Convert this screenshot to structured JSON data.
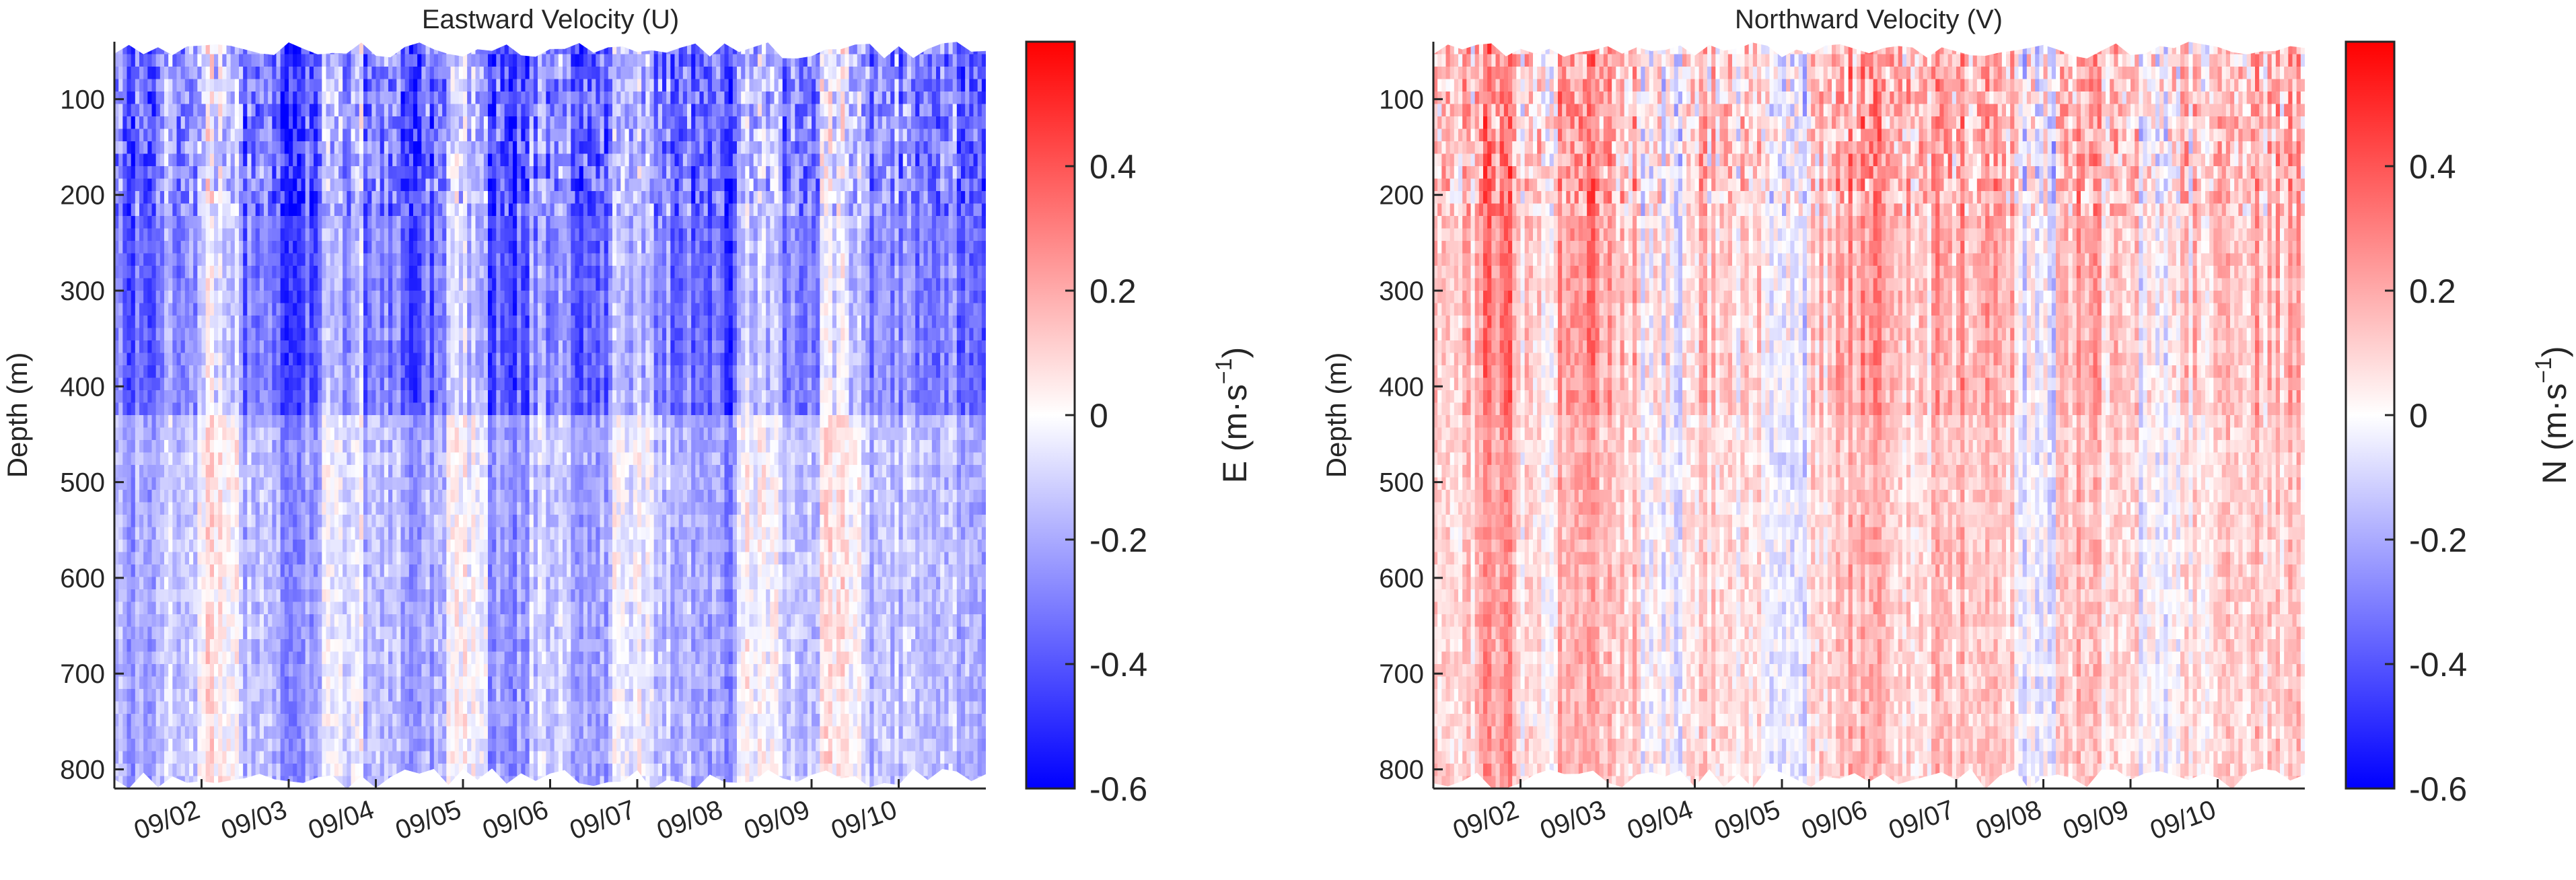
{
  "chart_data": [
    {
      "type": "heatmap",
      "title": "Eastward Velocity (U)",
      "ylabel": "Depth (m)",
      "ylim": [
        820,
        40
      ],
      "yticks": [
        100,
        200,
        300,
        400,
        500,
        600,
        700,
        800
      ],
      "ytick_labels": [
        "100",
        "200",
        "300",
        "400",
        "500",
        "600",
        "700",
        "800"
      ],
      "x_range_days": [
        0.0,
        10.0
      ],
      "xtick_days": [
        1,
        2,
        3,
        4,
        5,
        6,
        7,
        8,
        9
      ],
      "xtick_labels": [
        "09/02",
        "09/03",
        "09/04",
        "09/05",
        "09/06",
        "09/07",
        "09/08",
        "09/09",
        "09/10"
      ],
      "colorbar": {
        "label_prefix": "E",
        "label_units": "(m·s",
        "label_exp": "−1",
        "label_close": ")",
        "clim": [
          -0.6,
          0.6
        ],
        "ticks": [
          0.4,
          0.2,
          0,
          -0.2,
          -0.4,
          -0.6
        ],
        "tick_labels": [
          "0.4",
          "0.2",
          "0",
          "-0.2",
          "-0.4",
          "-0.6"
        ],
        "colors": {
          "low": "#0000ff",
          "mid": "#ffffff",
          "high": "#ff0000"
        }
      },
      "surface_depth_m": 45,
      "bottom_depth_m": 810,
      "shallow_break_depth_m": 220,
      "deep_start_depth_m": 430,
      "upper_bias": -0.22,
      "lower_bias": -0.08,
      "column_bias": [
        -0.15,
        -0.05,
        0.15,
        -0.1,
        -0.2,
        0.05,
        -0.1,
        -0.15,
        0.1,
        -0.2,
        -0.05,
        -0.15,
        0.05,
        -0.1,
        -0.2,
        0.1,
        -0.05,
        0.15,
        -0.1,
        -0.05,
        -0.1
      ]
    },
    {
      "type": "heatmap",
      "title": "Northward Velocity (V)",
      "ylabel": "Depth (m)",
      "ylim": [
        820,
        40
      ],
      "yticks": [
        100,
        200,
        300,
        400,
        500,
        600,
        700,
        800
      ],
      "ytick_labels": [
        "100",
        "200",
        "300",
        "400",
        "500",
        "600",
        "700",
        "800"
      ],
      "x_range_days": [
        0.0,
        10.0
      ],
      "xtick_days": [
        1,
        2,
        3,
        4,
        5,
        6,
        7,
        8,
        9
      ],
      "xtick_labels": [
        "09/02",
        "09/03",
        "09/04",
        "09/05",
        "09/06",
        "09/07",
        "09/08",
        "09/09",
        "09/10"
      ],
      "colorbar": {
        "label_prefix": "N",
        "label_units": "(m·s",
        "label_exp": "−1",
        "label_close": ")",
        "clim": [
          -0.6,
          0.6
        ],
        "ticks": [
          0.4,
          0.2,
          0,
          -0.2,
          -0.4,
          -0.6
        ],
        "tick_labels": [
          "0.4",
          "0.2",
          "0",
          "-0.2",
          "-0.4",
          "-0.6"
        ],
        "colors": {
          "low": "#0000ff",
          "mid": "#ffffff",
          "high": "#ff0000"
        }
      },
      "surface_depth_m": 45,
      "bottom_depth_m": 810,
      "shallow_break_depth_m": 220,
      "deep_start_depth_m": 430,
      "upper_bias": 0.05,
      "lower_bias": 0.02,
      "column_bias": [
        0.1,
        0.25,
        0.05,
        0.2,
        0.15,
        -0.05,
        0.1,
        0.05,
        -0.1,
        0.1,
        0.2,
        0.05,
        0.15,
        0.1,
        -0.1,
        0.15,
        0.1,
        -0.05,
        0.05,
        0.15,
        0.1
      ]
    }
  ]
}
